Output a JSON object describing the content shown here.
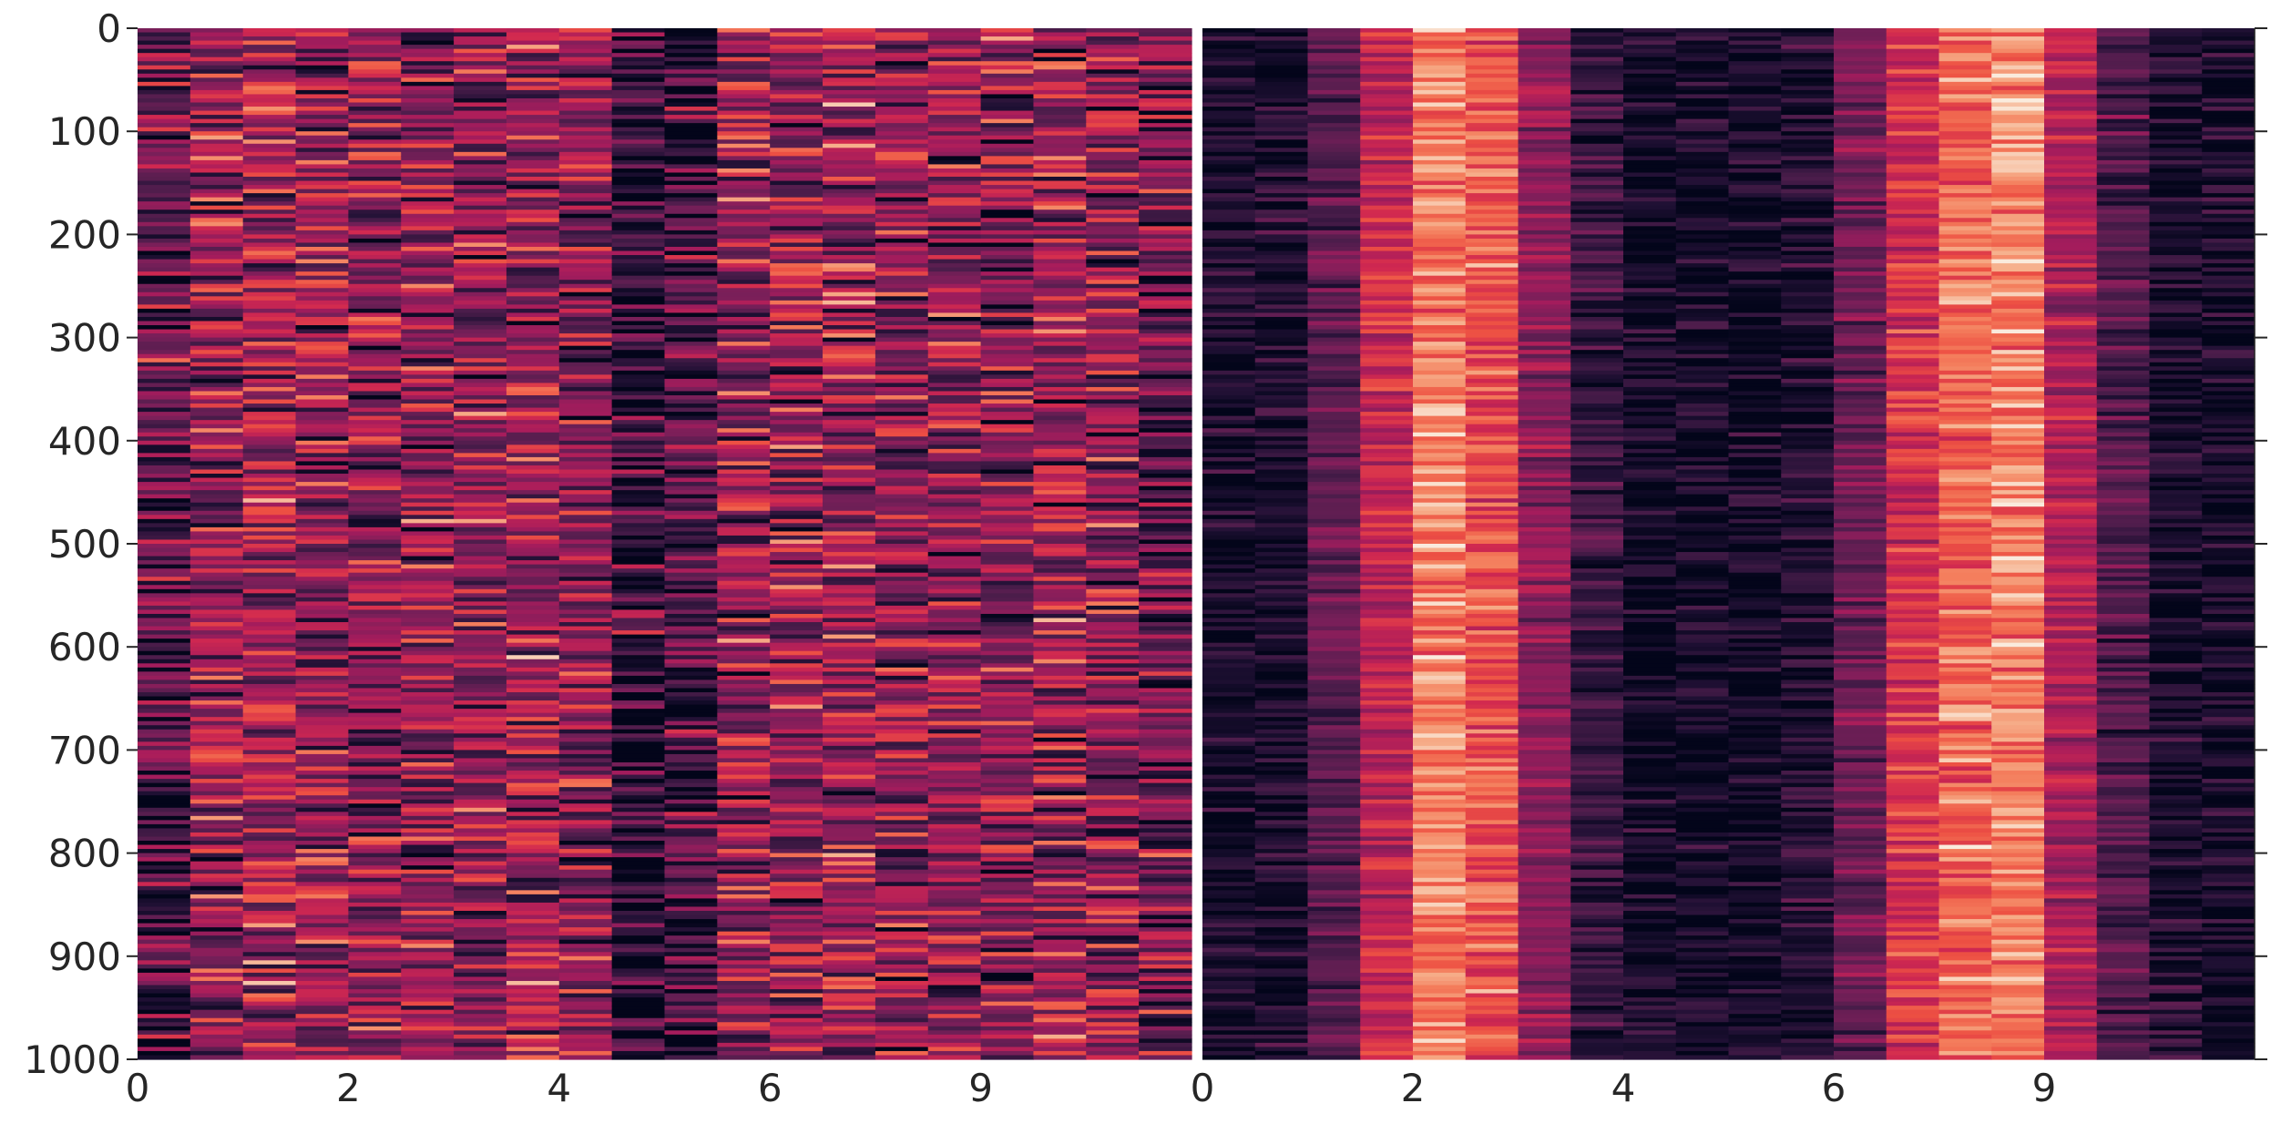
{
  "chart_data": [
    {
      "type": "heatmap",
      "panel": "left",
      "colormap": "rocket",
      "rows": 1000,
      "columns": 20,
      "ylim": [
        0,
        1000
      ],
      "y_ticks": [
        {
          "value": 0,
          "label": "0"
        },
        {
          "value": 100,
          "label": "100"
        },
        {
          "value": 200,
          "label": "200"
        },
        {
          "value": 300,
          "label": "300"
        },
        {
          "value": 400,
          "label": "400"
        },
        {
          "value": 500,
          "label": "500"
        },
        {
          "value": 600,
          "label": "600"
        },
        {
          "value": 700,
          "label": "700"
        },
        {
          "value": 800,
          "label": "800"
        },
        {
          "value": 900,
          "label": "900"
        },
        {
          "value": 1000,
          "label": "1000"
        }
      ],
      "x_ticks": [
        {
          "column": 0,
          "label": "0"
        },
        {
          "column": 4,
          "label": "2"
        },
        {
          "column": 8,
          "label": "4"
        },
        {
          "column": 12,
          "label": "6"
        },
        {
          "column": 16,
          "label": "9"
        }
      ],
      "column_mean_intensity": [
        0.28,
        0.42,
        0.46,
        0.44,
        0.4,
        0.42,
        0.4,
        0.44,
        0.4,
        0.14,
        0.2,
        0.42,
        0.46,
        0.44,
        0.4,
        0.42,
        0.4,
        0.44,
        0.4,
        0.3
      ],
      "row_noise": 0.9,
      "title": "",
      "xlabel": "",
      "ylabel": ""
    },
    {
      "type": "heatmap",
      "panel": "right",
      "colormap": "rocket",
      "rows": 1000,
      "columns": 20,
      "ylim": [
        0,
        1000
      ],
      "y_ticks_side": "right",
      "y_ticks_labeled": false,
      "x_ticks": [
        {
          "column": 0,
          "label": "0"
        },
        {
          "column": 4,
          "label": "2"
        },
        {
          "column": 8,
          "label": "4"
        },
        {
          "column": 12,
          "label": "6"
        },
        {
          "column": 16,
          "label": "9"
        }
      ],
      "column_mean_intensity": [
        0.06,
        0.08,
        0.26,
        0.56,
        0.82,
        0.72,
        0.4,
        0.16,
        0.05,
        0.05,
        0.05,
        0.1,
        0.32,
        0.62,
        0.78,
        0.84,
        0.5,
        0.24,
        0.07,
        0.06
      ],
      "row_noise": 0.4,
      "title": "",
      "xlabel": "",
      "ylabel": ""
    }
  ]
}
